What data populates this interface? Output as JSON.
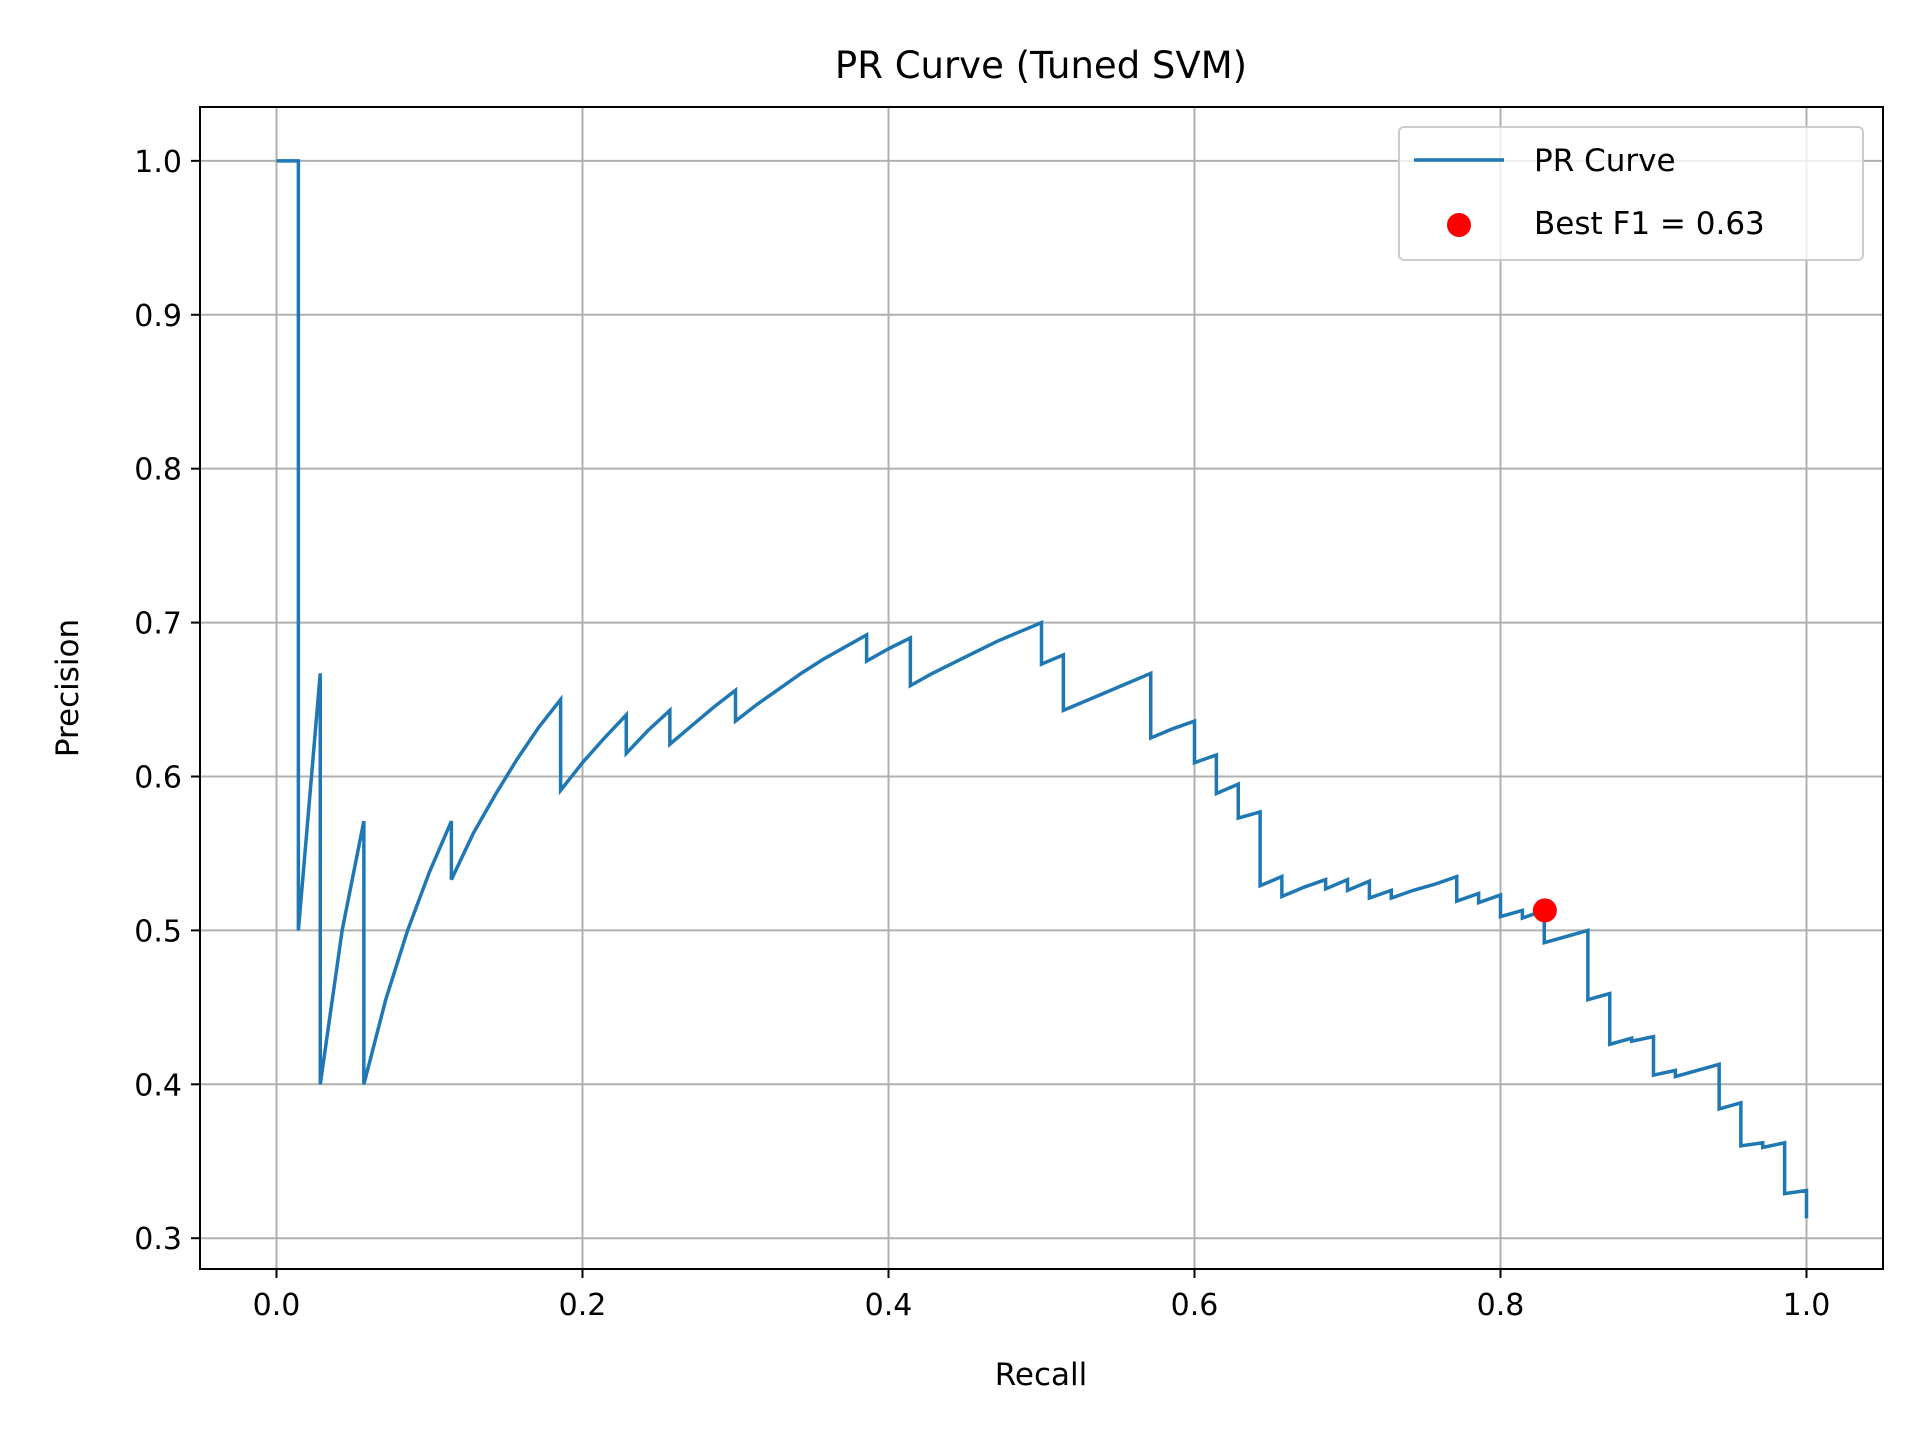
{
  "chart_data": {
    "type": "line",
    "title": "PR Curve (Tuned SVM)",
    "xlabel": "Recall",
    "ylabel": "Precision",
    "xlim": [
      -0.05,
      1.05
    ],
    "ylim": [
      0.28,
      1.035
    ],
    "x_ticks": [
      0.0,
      0.2,
      0.4,
      0.6,
      0.8,
      1.0
    ],
    "x_tick_labels": [
      "0.0",
      "0.2",
      "0.4",
      "0.6",
      "0.8",
      "1.0"
    ],
    "y_ticks": [
      0.3,
      0.4,
      0.5,
      0.6,
      0.7,
      0.8,
      0.9,
      1.0
    ],
    "y_tick_labels": [
      "0.3",
      "0.4",
      "0.5",
      "0.6",
      "0.7",
      "0.8",
      "0.9",
      "1.0"
    ],
    "grid": true,
    "legend_position": "top-right",
    "colors": {
      "curve": "#1f77b4",
      "best_point": "#ff0000",
      "grid": "#b0b0b0"
    },
    "series": [
      {
        "name": "PR Curve",
        "x": [
          0.0,
          0.0143,
          0.0143,
          0.0143,
          0.0286,
          0.0286,
          0.0429,
          0.0571,
          0.0571,
          0.0714,
          0.0857,
          0.1,
          0.1143,
          0.1143,
          0.1286,
          0.1429,
          0.1571,
          0.1714,
          0.1857,
          0.1857,
          0.2,
          0.2143,
          0.2286,
          0.2286,
          0.2429,
          0.2571,
          0.2571,
          0.2714,
          0.2857,
          0.3,
          0.3,
          0.3143,
          0.3286,
          0.3429,
          0.3571,
          0.3714,
          0.3857,
          0.3857,
          0.4,
          0.4143,
          0.4143,
          0.4286,
          0.4429,
          0.4571,
          0.4714,
          0.4857,
          0.5,
          0.5,
          0.5143,
          0.5143,
          0.5286,
          0.5429,
          0.5571,
          0.5714,
          0.5714,
          0.5857,
          0.6,
          0.6,
          0.6143,
          0.6143,
          0.6286,
          0.6286,
          0.6429,
          0.6429,
          0.6571,
          0.6571,
          0.6714,
          0.6857,
          0.6857,
          0.7,
          0.7,
          0.7143,
          0.7143,
          0.7286,
          0.7286,
          0.7429,
          0.7571,
          0.7714,
          0.7714,
          0.7857,
          0.7857,
          0.8,
          0.8,
          0.8143,
          0.8143,
          0.8286,
          0.8286,
          0.8429,
          0.8571,
          0.8571,
          0.8714,
          0.8714,
          0.8857,
          0.8857,
          0.9,
          0.9,
          0.9143,
          0.9143,
          0.9286,
          0.9429,
          0.9429,
          0.9571,
          0.9571,
          0.9714,
          0.9714,
          0.9857,
          0.9857,
          1.0,
          1.0
        ],
        "y": [
          1.0,
          1.0,
          0.5,
          0.5,
          0.667,
          0.4,
          0.5,
          0.571,
          0.4,
          0.455,
          0.5,
          0.538,
          0.571,
          0.533,
          0.563,
          0.588,
          0.611,
          0.632,
          0.65,
          0.591,
          0.609,
          0.625,
          0.64,
          0.615,
          0.63,
          0.643,
          0.621,
          0.633,
          0.645,
          0.656,
          0.636,
          0.647,
          0.657,
          0.667,
          0.676,
          0.684,
          0.692,
          0.675,
          0.683,
          0.69,
          0.659,
          0.667,
          0.674,
          0.681,
          0.688,
          0.694,
          0.7,
          0.673,
          0.679,
          0.643,
          0.649,
          0.655,
          0.661,
          0.667,
          0.625,
          0.631,
          0.636,
          0.609,
          0.614,
          0.589,
          0.595,
          0.573,
          0.577,
          0.529,
          0.535,
          0.522,
          0.528,
          0.533,
          0.527,
          0.533,
          0.526,
          0.532,
          0.521,
          0.526,
          0.521,
          0.526,
          0.53,
          0.535,
          0.519,
          0.524,
          0.518,
          0.523,
          0.509,
          0.513,
          0.508,
          0.513,
          0.492,
          0.496,
          0.5,
          0.455,
          0.459,
          0.426,
          0.43,
          0.428,
          0.431,
          0.406,
          0.409,
          0.405,
          0.409,
          0.413,
          0.384,
          0.388,
          0.36,
          0.362,
          0.359,
          0.362,
          0.329,
          0.331,
          0.313
        ]
      }
    ],
    "best_point": {
      "name": "Best F1 = 0.63",
      "x": 0.829,
      "y": 0.513
    }
  }
}
